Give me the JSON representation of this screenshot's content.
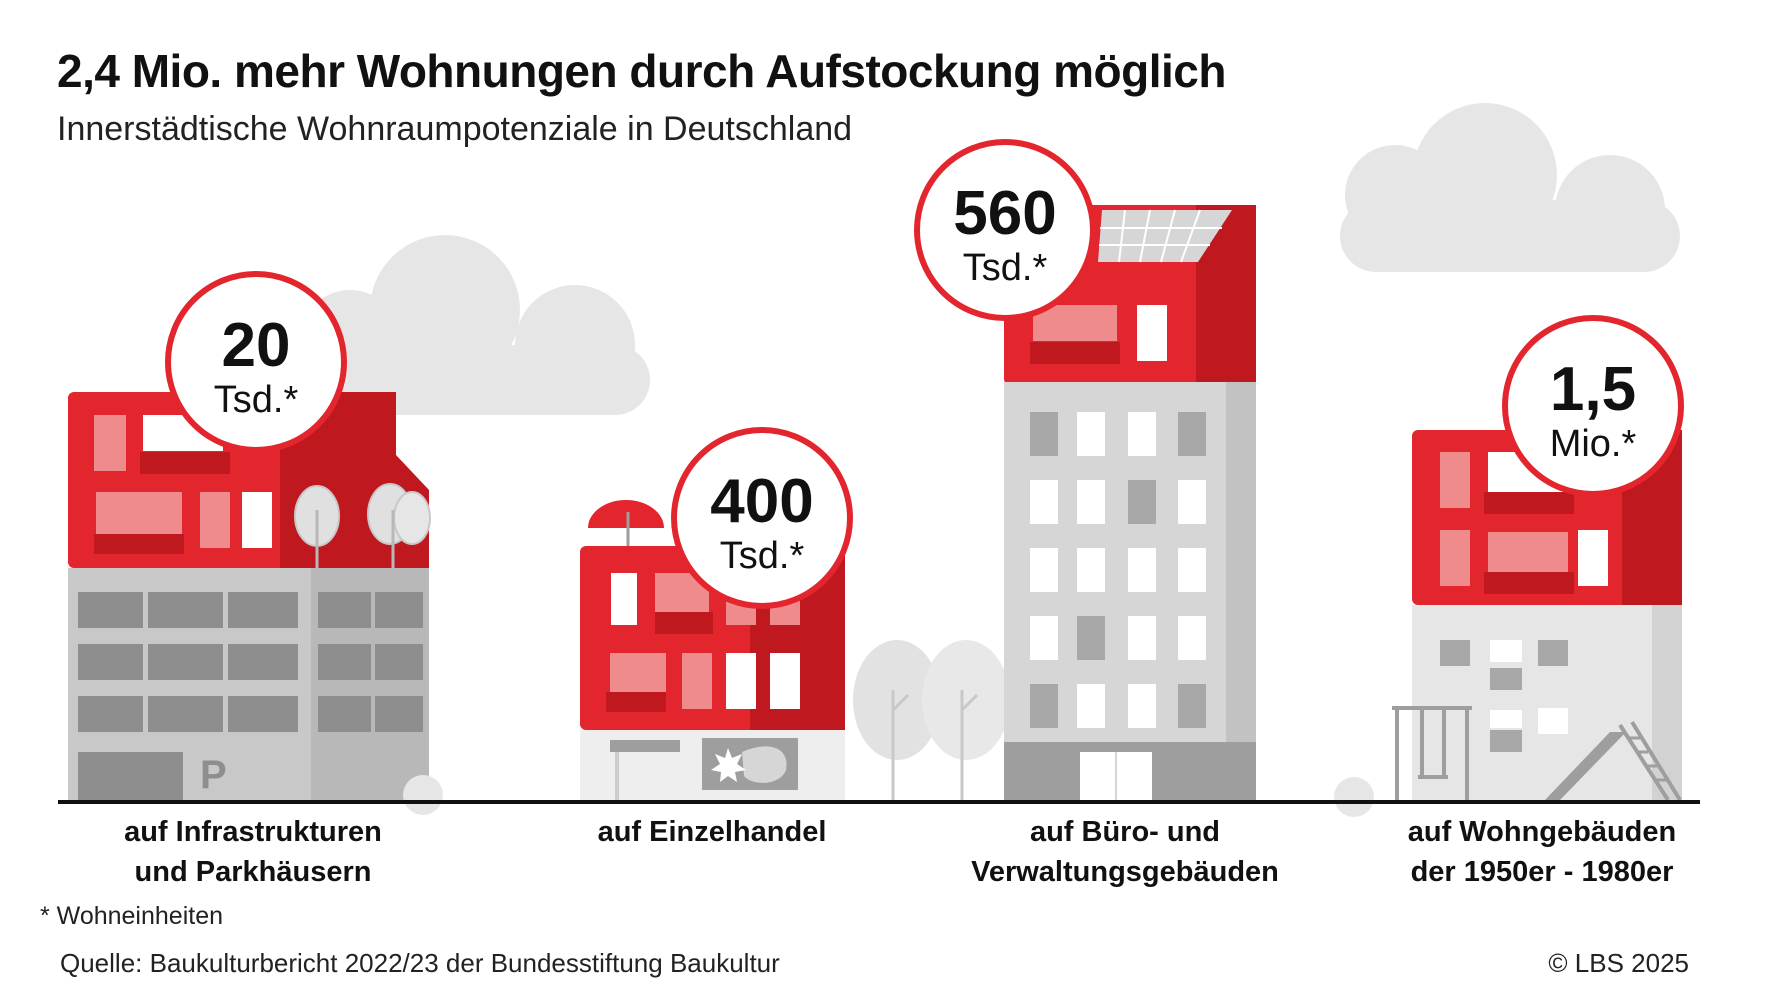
{
  "title": "2,4 Mio. mehr Wohnungen durch Aufstockung möglich",
  "subtitle": "Innerstädtische Wohnraumpotenziale in Deutschland",
  "footnote": "* Wohneinheiten",
  "source": "Quelle: Baukulturbericht 2022/23 der Bundesstiftung Baukultur",
  "copyright": "© LBS 2025",
  "colors": {
    "red": "#e3262e",
    "dark_red": "#c0181f",
    "light_red": "#ef8a8d",
    "grey": "#cdcdcd",
    "dark_grey": "#9e9e9e",
    "cloud": "#e6e6e6"
  },
  "chart_data": {
    "type": "bar",
    "categories": [
      "auf Infrastrukturen\nund Parkhäusern",
      "auf Einzelhandel",
      "auf Büro- und\nVerwaltungsgebäuden",
      "auf Wohngebäuden\nder 1950er - 1980er"
    ],
    "values": [
      20000,
      400000,
      560000,
      1500000
    ],
    "value_labels": [
      {
        "number": "20",
        "unit": "Tsd.*"
      },
      {
        "number": "400",
        "unit": "Tsd.*"
      },
      {
        "number": "560",
        "unit": "Tsd.*"
      },
      {
        "number": "1,5",
        "unit": "Mio.*"
      }
    ],
    "parking_sign": "P"
  }
}
